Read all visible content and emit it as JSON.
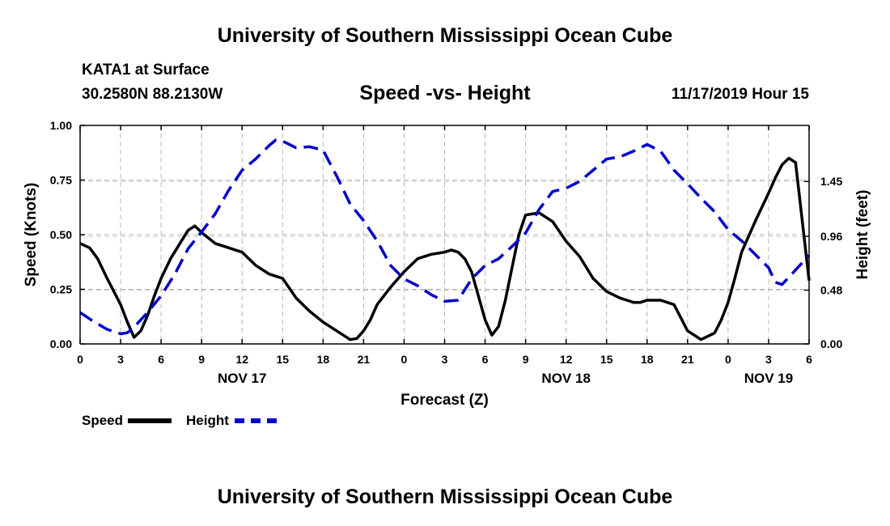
{
  "top_title": "University of Southern Mississippi Ocean Cube",
  "bottom_title": "University of Southern Mississippi Ocean Cube",
  "station": {
    "name": "KATA1 at Surface",
    "coords": "30.2580N 88.2130W"
  },
  "chart_heading": "Speed -vs- Height",
  "timestamp": "11/17/2019 Hour 15",
  "legend": [
    {
      "label": "Speed",
      "color": "#000000",
      "style": "solid"
    },
    {
      "label": "Height",
      "color": "#0000cc",
      "style": "dashed"
    }
  ],
  "chart_data": {
    "type": "line",
    "title": "Speed -vs- Height",
    "xlabel": "Forecast (Z)",
    "ylabel": "Speed (Knots)",
    "y2label": "Height (feet)",
    "xlim": [
      0,
      54
    ],
    "ylim": [
      0,
      1.0
    ],
    "y2lim": [
      0,
      1.95
    ],
    "grid": true,
    "x_tick_values": [
      0,
      3,
      6,
      9,
      12,
      15,
      18,
      21,
      24,
      27,
      30,
      33,
      36,
      39,
      42,
      45,
      48,
      51,
      54
    ],
    "x_tick_labels": [
      "0",
      "3",
      "6",
      "9",
      "12",
      "15",
      "18",
      "21",
      "0",
      "3",
      "6",
      "9",
      "12",
      "15",
      "18",
      "21",
      "0",
      "3",
      "6"
    ],
    "date_labels": [
      {
        "x": 12,
        "label": "NOV 17"
      },
      {
        "x": 36,
        "label": "NOV 18"
      },
      {
        "x": 51,
        "label": "NOV 19"
      }
    ],
    "y_ticks": [
      0.0,
      0.25,
      0.5,
      0.75,
      1.0
    ],
    "y_tick_labels": [
      "0.00",
      "0.25",
      "0.50",
      "0.75",
      "1.00"
    ],
    "y2_ticks": [
      0.0,
      0.48,
      0.96,
      1.45
    ],
    "y2_tick_labels": [
      "0.00",
      "0.48",
      "0.96",
      "1.45"
    ],
    "series": [
      {
        "name": "Speed",
        "axis": "left",
        "color": "#000000",
        "dash": false,
        "x": [
          0,
          0.7,
          1.3,
          2,
          3,
          3.5,
          4,
          4.5,
          5,
          5.5,
          6,
          6.7,
          7.5,
          8,
          8.5,
          9,
          10,
          11,
          11.5,
          12,
          12.5,
          13,
          14,
          14.5,
          15,
          16,
          17,
          18,
          19,
          19.5,
          20,
          20.5,
          21,
          21.5,
          22,
          23,
          24,
          25,
          26,
          27,
          27.5,
          28,
          28.5,
          29,
          30,
          30.5,
          31,
          31.5,
          32,
          32.5,
          33,
          34,
          35,
          36,
          37,
          38,
          39,
          40,
          40.5,
          41,
          41.5,
          42,
          42.5,
          43,
          44,
          45,
          46,
          47,
          47.5,
          48,
          48.5,
          49,
          50,
          51,
          51.5,
          52,
          52.5,
          53,
          54
        ],
        "values": [
          0.46,
          0.44,
          0.39,
          0.3,
          0.18,
          0.1,
          0.03,
          0.06,
          0.13,
          0.22,
          0.3,
          0.39,
          0.47,
          0.52,
          0.54,
          0.51,
          0.46,
          0.44,
          0.43,
          0.42,
          0.39,
          0.36,
          0.32,
          0.31,
          0.3,
          0.21,
          0.15,
          0.1,
          0.06,
          0.04,
          0.02,
          0.025,
          0.06,
          0.11,
          0.18,
          0.26,
          0.33,
          0.39,
          0.41,
          0.42,
          0.43,
          0.42,
          0.39,
          0.33,
          0.11,
          0.04,
          0.08,
          0.2,
          0.35,
          0.5,
          0.59,
          0.6,
          0.56,
          0.47,
          0.4,
          0.3,
          0.24,
          0.21,
          0.2,
          0.19,
          0.19,
          0.2,
          0.2,
          0.2,
          0.18,
          0.06,
          0.02,
          0.05,
          0.11,
          0.19,
          0.3,
          0.42,
          0.56,
          0.69,
          0.76,
          0.82,
          0.85,
          0.83,
          0.29
        ]
      },
      {
        "name": "Height",
        "axis": "right",
        "color": "#0000cc",
        "dash": true,
        "x": [
          0,
          1,
          2,
          3,
          3.5,
          4,
          5,
          6,
          7,
          8,
          9,
          10,
          11,
          12,
          13,
          14,
          14.5,
          15,
          16,
          17,
          18,
          19,
          20,
          21,
          22,
          23,
          24,
          25,
          26,
          27,
          28,
          29,
          30,
          31,
          32,
          33,
          34,
          35,
          36,
          37,
          38,
          39,
          40,
          41,
          42,
          43,
          44,
          45,
          46,
          47,
          48,
          49,
          50,
          51,
          51.5,
          52,
          53,
          54
        ],
        "values": [
          0.28,
          0.2,
          0.13,
          0.09,
          0.1,
          0.15,
          0.28,
          0.43,
          0.62,
          0.85,
          1.0,
          1.16,
          1.37,
          1.55,
          1.65,
          1.77,
          1.82,
          1.81,
          1.75,
          1.76,
          1.73,
          1.5,
          1.25,
          1.1,
          0.92,
          0.7,
          0.58,
          0.52,
          0.44,
          0.38,
          0.39,
          0.58,
          0.7,
          0.76,
          0.87,
          0.99,
          1.2,
          1.36,
          1.39,
          1.45,
          1.55,
          1.65,
          1.67,
          1.72,
          1.78,
          1.72,
          1.55,
          1.43,
          1.3,
          1.18,
          1.02,
          0.92,
          0.8,
          0.68,
          0.55,
          0.53,
          0.66,
          0.79
        ]
      }
    ]
  }
}
